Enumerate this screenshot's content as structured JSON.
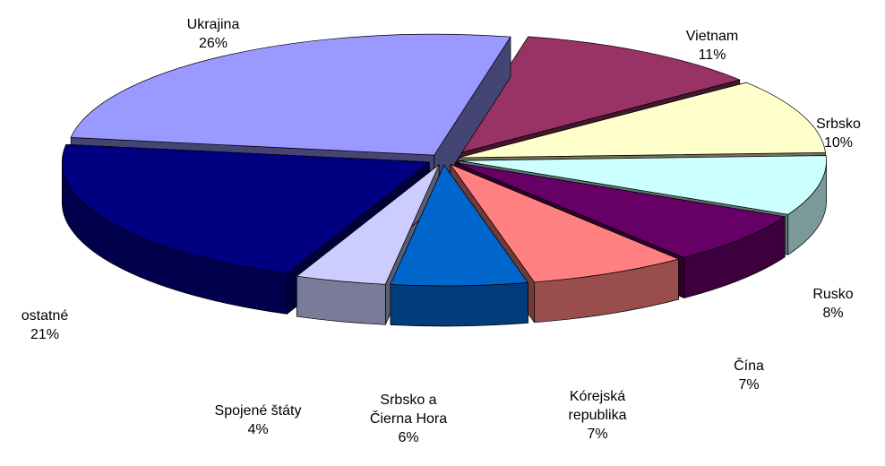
{
  "chart_data": {
    "type": "pie",
    "categories": [
      "Vietnam",
      "Srbsko",
      "Rusko",
      "Čína",
      "Kórejská republika",
      "Srbsko a Čierna Hora",
      "Spojené štáty",
      "ostatné",
      "Ukrajina"
    ],
    "values": [
      11,
      10,
      8,
      7,
      7,
      6,
      4,
      21,
      26
    ],
    "value_labels": [
      "11%",
      "10%",
      "8%",
      "7%",
      "7%",
      "6%",
      "4%",
      "21%",
      "26%"
    ],
    "colors": [
      "#993366",
      "#ffffcc",
      "#ccffff",
      "#660066",
      "#ff8080",
      "#0066cc",
      "#ccccff",
      "#000080",
      "#9999ff"
    ]
  }
}
